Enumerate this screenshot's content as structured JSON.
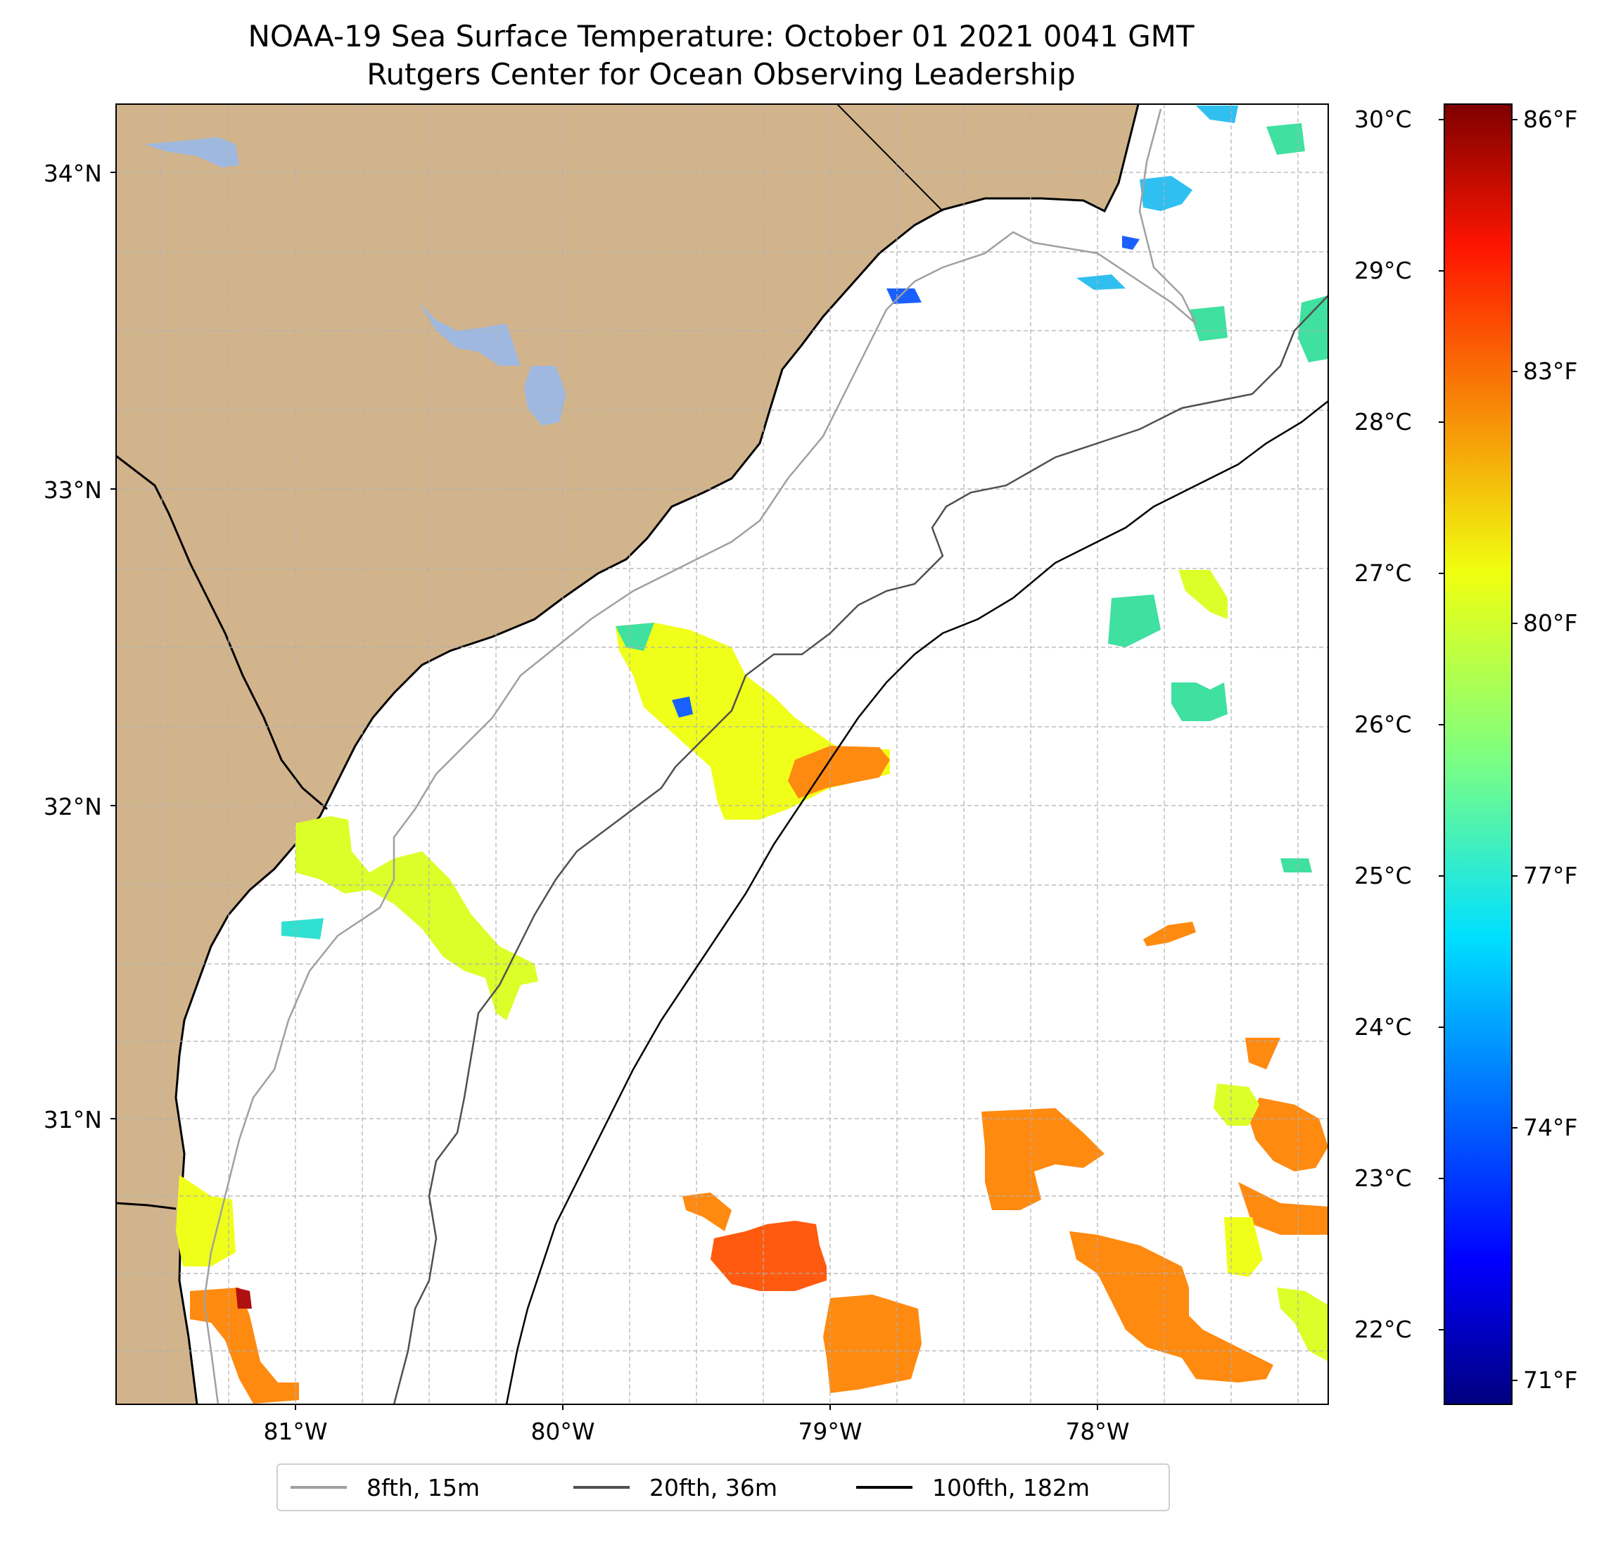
{
  "title": {
    "line1": "NOAA-19 Sea Surface Temperature: October 01 2021 0041 GMT",
    "line2": "Rutgers Center for Ocean Observing Leadership"
  },
  "map": {
    "land_color": "#d2b48c",
    "lake_color": "#9fb8e0",
    "lat_labels": [
      "34°N",
      "33°N",
      "32°N",
      "31°N"
    ],
    "lon_labels": [
      "81°W",
      "80°W",
      "79°W",
      "78°W"
    ]
  },
  "colorbar": {
    "celsius_labels": [
      "30°C",
      "29°C",
      "28°C",
      "27°C",
      "26°C",
      "25°C",
      "24°C",
      "23°C",
      "22°C"
    ],
    "fahrenheit_labels": [
      "86°F",
      "83°F",
      "80°F",
      "77°F",
      "74°F",
      "71°F"
    ],
    "range_c": [
      21.5,
      30.2
    ],
    "colormap": "jet"
  },
  "legend": [
    {
      "label": "8fth, 15m",
      "color": "#a0a0a0"
    },
    {
      "label": "20fth, 36m",
      "color": "#505050"
    },
    {
      "label": "100fth, 182m",
      "color": "#000000"
    }
  ]
}
